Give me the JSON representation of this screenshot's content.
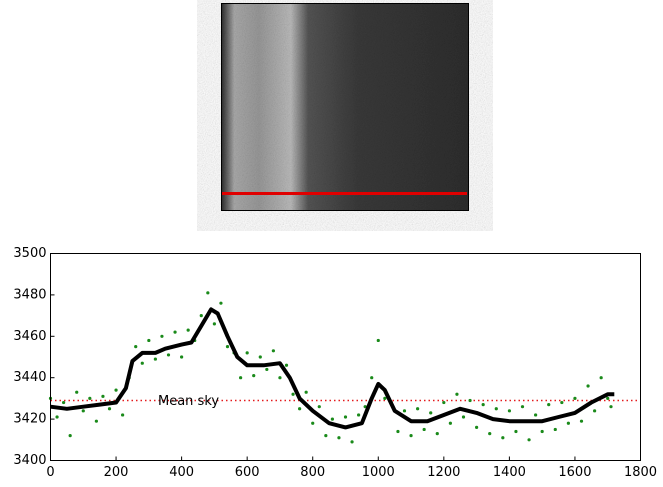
{
  "chart_data": {
    "type": "scatter",
    "annotation": "Mean sky",
    "mean_sky": 3429,
    "mean_color": "#e41a1c",
    "xlim": [
      0,
      1800
    ],
    "ylim": [
      3400,
      3500
    ],
    "xticks": [
      0,
      200,
      400,
      600,
      800,
      1000,
      1200,
      1400,
      1600,
      1800
    ],
    "yticks": [
      3400,
      3420,
      3440,
      3460,
      3480,
      3500
    ],
    "grid": false,
    "series": [
      {
        "kind": "points",
        "color": "#1a8a1a",
        "x": [
          0,
          20,
          40,
          60,
          80,
          100,
          120,
          140,
          160,
          180,
          200,
          220,
          240,
          260,
          280,
          300,
          320,
          340,
          360,
          380,
          400,
          420,
          440,
          460,
          480,
          500,
          520,
          540,
          560,
          580,
          600,
          620,
          640,
          660,
          680,
          700,
          720,
          740,
          760,
          780,
          800,
          820,
          840,
          860,
          880,
          900,
          920,
          940,
          960,
          980,
          1000,
          1020,
          1040,
          1060,
          1080,
          1100,
          1120,
          1140,
          1160,
          1180,
          1200,
          1220,
          1240,
          1260,
          1280,
          1300,
          1320,
          1340,
          1360,
          1380,
          1400,
          1420,
          1440,
          1460,
          1480,
          1500,
          1520,
          1540,
          1560,
          1580,
          1600,
          1620,
          1640,
          1660,
          1680,
          1700,
          1710
        ],
        "values": [
          3430,
          3421,
          3428,
          3412,
          3433,
          3424,
          3430,
          3419,
          3431,
          3425,
          3434,
          3422,
          3440,
          3455,
          3447,
          3458,
          3449,
          3460,
          3451,
          3462,
          3450,
          3463,
          3458,
          3470,
          3481,
          3466,
          3476,
          3455,
          3452,
          3440,
          3452,
          3441,
          3450,
          3444,
          3453,
          3440,
          3446,
          3432,
          3425,
          3433,
          3418,
          3426,
          3412,
          3420,
          3411,
          3421,
          3409,
          3422,
          3426,
          3440,
          3458,
          3430,
          3428,
          3414,
          3424,
          3412,
          3425,
          3415,
          3423,
          3413,
          3428,
          3418,
          3432,
          3421,
          3429,
          3416,
          3427,
          3413,
          3425,
          3411,
          3424,
          3414,
          3426,
          3410,
          3422,
          3414,
          3427,
          3415,
          3428,
          3418,
          3430,
          3419,
          3436,
          3424,
          3440,
          3430,
          3426
        ]
      },
      {
        "kind": "line",
        "color": "#000000",
        "x": [
          0,
          50,
          100,
          150,
          200,
          230,
          250,
          280,
          320,
          350,
          400,
          430,
          460,
          490,
          510,
          540,
          570,
          600,
          650,
          700,
          730,
          760,
          800,
          850,
          900,
          950,
          980,
          1000,
          1020,
          1050,
          1100,
          1150,
          1200,
          1250,
          1300,
          1350,
          1400,
          1450,
          1500,
          1550,
          1600,
          1650,
          1700,
          1720
        ],
        "values": [
          3426,
          3425,
          3426,
          3427,
          3428,
          3435,
          3448,
          3452,
          3452,
          3454,
          3456,
          3457,
          3465,
          3473,
          3471,
          3460,
          3450,
          3446,
          3446,
          3447,
          3440,
          3430,
          3424,
          3418,
          3416,
          3418,
          3430,
          3437,
          3434,
          3424,
          3419,
          3419,
          3422,
          3425,
          3423,
          3420,
          3419,
          3419,
          3419,
          3421,
          3423,
          3428,
          3432,
          3432
        ]
      }
    ]
  }
}
